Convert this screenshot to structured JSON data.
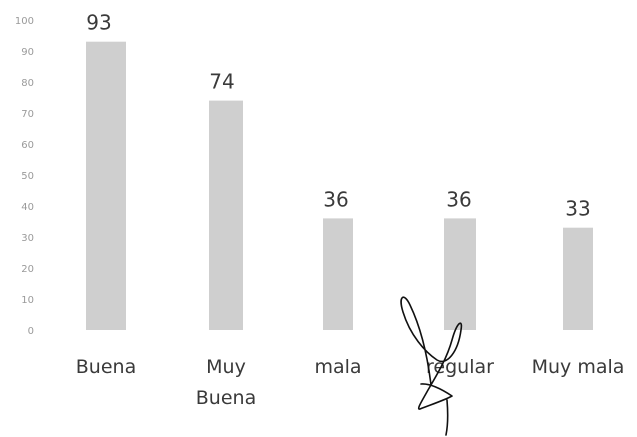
{
  "chart_data": {
    "type": "bar",
    "title": "",
    "xlabel": "",
    "ylabel": "",
    "ylim": [
      0,
      100
    ],
    "yticks": [
      0,
      10,
      20,
      30,
      40,
      50,
      60,
      70,
      80,
      90,
      100
    ],
    "grid": false,
    "legend": "none",
    "categories": [
      [
        "Buena"
      ],
      [
        "Muy",
        "Buena"
      ],
      [
        "mala"
      ],
      [
        "regular"
      ],
      [
        "Muy mala"
      ]
    ],
    "values": [
      93,
      74,
      36,
      36,
      33
    ],
    "data_labels": [
      "93",
      "74",
      "36",
      "36",
      "33"
    ],
    "colors": {
      "bar": "#b4b4b4",
      "text": "#3a3a3a",
      "tick": "#9a9a9a"
    },
    "annotations": [
      "handwritten-signature over the regular category"
    ]
  }
}
